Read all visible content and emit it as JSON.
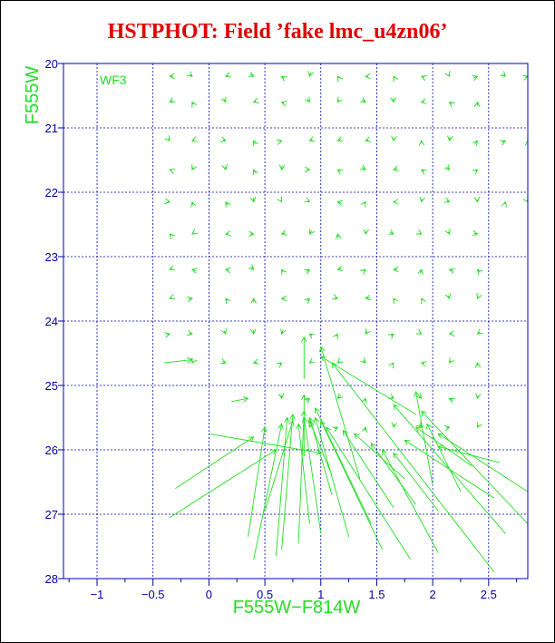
{
  "chart_data": {
    "type": "scatter",
    "title": "HSTPHOT: Field ’fake lmc_u4zn06’",
    "xlabel": "F555W−F814W",
    "ylabel": "F555W",
    "annotation": "WF3",
    "xlim": [
      -1.3,
      2.85
    ],
    "ylim": [
      28,
      20
    ],
    "grid": true,
    "colors": {
      "title": "#e00000",
      "axis": "#0000aa",
      "data": "#22dd22"
    },
    "x_ticks": [
      "−1",
      "−0.5",
      "0",
      "0.5",
      "1",
      "1.5",
      "2",
      "2.5"
    ],
    "x_tick_values": [
      -1,
      -0.5,
      0,
      0.5,
      1,
      1.5,
      2,
      2.5
    ],
    "y_ticks": [
      "20",
      "21",
      "22",
      "23",
      "24",
      "25",
      "26",
      "27",
      "28"
    ],
    "y_tick_values": [
      20,
      21,
      22,
      23,
      24,
      25,
      26,
      27,
      28
    ],
    "small_vectors": {
      "rows": [
        20.2,
        20.6,
        21.2,
        21.65,
        22.15,
        22.65,
        23.2,
        23.65,
        24.2,
        24.65,
        25.2,
        25.65
      ],
      "cols": [
        [
          -0.35,
          -0.15,
          0.15,
          0.4,
          0.65,
          0.9,
          1.15,
          1.4,
          1.65,
          1.9,
          2.15,
          2.4,
          2.65,
          2.85
        ],
        [
          -0.35,
          -0.15,
          0.15,
          0.4,
          0.65,
          0.9,
          1.15,
          1.4,
          1.65,
          1.9,
          2.15,
          2.4
        ],
        [
          -0.35,
          -0.15,
          0.15,
          0.4,
          0.65,
          0.9,
          1.15,
          1.4,
          1.65,
          1.9,
          2.15,
          2.4,
          2.65,
          2.85
        ],
        [
          -0.35,
          -0.15,
          0.15,
          0.4,
          0.65,
          0.9,
          1.15,
          1.4,
          1.65,
          1.9,
          2.15,
          2.4
        ],
        [
          -0.35,
          -0.15,
          0.15,
          0.4,
          0.65,
          0.9,
          1.15,
          1.4,
          1.65,
          1.9,
          2.15,
          2.4,
          2.65,
          2.85
        ],
        [
          -0.35,
          -0.15,
          0.15,
          0.4,
          0.65,
          0.9,
          1.15,
          1.4,
          1.65,
          1.9,
          2.15,
          2.4
        ],
        [
          -0.35,
          -0.15,
          0.15,
          0.4,
          0.65,
          0.9,
          1.15,
          1.4,
          1.65,
          1.9,
          2.15,
          2.4
        ],
        [
          -0.35,
          -0.15,
          0.15,
          0.4,
          0.65,
          0.9,
          1.15,
          1.4,
          1.65,
          1.9,
          2.15,
          2.4
        ],
        [
          -0.35,
          -0.15,
          0.15,
          0.4,
          0.65,
          0.9,
          1.15,
          1.4,
          1.65,
          1.9,
          2.15,
          2.4
        ],
        [
          -0.15,
          0.15,
          0.4,
          0.65,
          0.9,
          1.15,
          1.4,
          1.65,
          1.9,
          2.15,
          2.4
        ],
        [
          0.65,
          0.9,
          1.15,
          1.4,
          1.65,
          1.9,
          2.15,
          2.4
        ],
        [
          0.9,
          1.15,
          1.4,
          1.65,
          1.9,
          2.15,
          2.4
        ]
      ]
    },
    "long_vectors": [
      {
        "x0": -0.4,
        "y0": 24.65,
        "x1": -0.15,
        "y1": 24.6
      },
      {
        "x0": 0.2,
        "y0": 25.25,
        "x1": 0.35,
        "y1": 25.2
      },
      {
        "x0": 0.0,
        "y0": 25.75,
        "x1": 1.0,
        "y1": 26.05
      },
      {
        "x0": -0.3,
        "y0": 26.6,
        "x1": 0.4,
        "y1": 25.8
      },
      {
        "x0": -0.35,
        "y0": 27.05,
        "x1": 0.6,
        "y1": 26.0
      },
      {
        "x0": 0.35,
        "y0": 27.35,
        "x1": 0.5,
        "y1": 25.65
      },
      {
        "x0": 0.4,
        "y0": 27.7,
        "x1": 0.65,
        "y1": 25.6
      },
      {
        "x0": 0.5,
        "y0": 26.95,
        "x1": 0.75,
        "y1": 25.55
      },
      {
        "x0": 0.6,
        "y0": 27.65,
        "x1": 0.7,
        "y1": 25.5
      },
      {
        "x0": 0.65,
        "y0": 27.55,
        "x1": 0.75,
        "y1": 25.45
      },
      {
        "x0": 0.8,
        "y0": 27.45,
        "x1": 0.85,
        "y1": 25.4
      },
      {
        "x0": 0.9,
        "y0": 27.15,
        "x1": 0.8,
        "y1": 25.6
      },
      {
        "x0": 1.0,
        "y0": 27.3,
        "x1": 0.85,
        "y1": 25.5
      },
      {
        "x0": 1.1,
        "y0": 26.7,
        "x1": 0.9,
        "y1": 25.5
      },
      {
        "x0": 1.25,
        "y0": 27.35,
        "x1": 0.95,
        "y1": 25.5
      },
      {
        "x0": 1.45,
        "y0": 27.15,
        "x1": 0.95,
        "y1": 25.35
      },
      {
        "x0": 1.55,
        "y0": 27.55,
        "x1": 1.0,
        "y1": 25.55
      },
      {
        "x0": 1.8,
        "y0": 27.7,
        "x1": 1.05,
        "y1": 25.65
      },
      {
        "x0": 0.85,
        "y0": 26.1,
        "x1": 0.85,
        "y1": 25.15
      },
      {
        "x0": 1.1,
        "y0": 26.4,
        "x1": 0.9,
        "y1": 25.55
      },
      {
        "x0": 1.65,
        "y0": 26.9,
        "x1": 1.2,
        "y1": 25.7
      },
      {
        "x0": 1.75,
        "y0": 26.45,
        "x1": 1.3,
        "y1": 25.75
      },
      {
        "x0": 1.85,
        "y0": 26.85,
        "x1": 1.45,
        "y1": 25.9
      },
      {
        "x0": 2.05,
        "y0": 27.6,
        "x1": 1.55,
        "y1": 26.0
      },
      {
        "x0": 2.05,
        "y0": 26.95,
        "x1": 1.65,
        "y1": 26.05
      },
      {
        "x0": 1.35,
        "y0": 26.45,
        "x1": 1.0,
        "y1": 24.4
      },
      {
        "x0": 0.85,
        "y0": 24.9,
        "x1": 0.85,
        "y1": 24.25
      },
      {
        "x0": 1.85,
        "y0": 25.45,
        "x1": 1.0,
        "y1": 24.55
      },
      {
        "x0": 2.55,
        "y0": 27.9,
        "x1": 1.1,
        "y1": 24.65
      },
      {
        "x0": 2.65,
        "y0": 27.3,
        "x1": 1.65,
        "y1": 25.3
      },
      {
        "x0": 2.85,
        "y0": 27.15,
        "x1": 1.9,
        "y1": 25.4
      },
      {
        "x0": 2.85,
        "y0": 26.65,
        "x1": 2.05,
        "y1": 25.75
      },
      {
        "x0": 2.55,
        "y0": 26.75,
        "x1": 1.75,
        "y1": 25.85
      },
      {
        "x0": 2.35,
        "y0": 26.25,
        "x1": 1.85,
        "y1": 25.65
      },
      {
        "x0": 2.6,
        "y0": 26.2,
        "x1": 2.05,
        "y1": 25.95
      },
      {
        "x0": 2.0,
        "y0": 26.55,
        "x1": 1.85,
        "y1": 25.1
      },
      {
        "x0": 2.25,
        "y0": 26.65,
        "x1": 1.95,
        "y1": 25.6
      }
    ]
  }
}
